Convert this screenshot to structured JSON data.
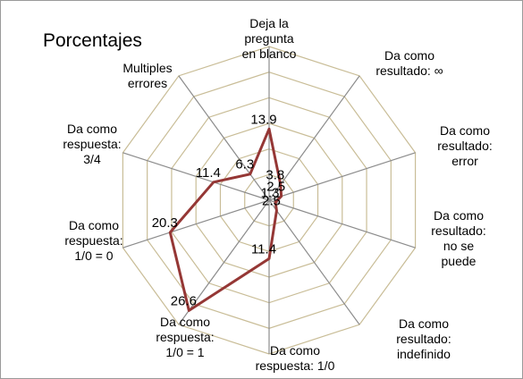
{
  "chart_data": {
    "type": "radar",
    "title": "Porcentajes",
    "categories": [
      "Deja la\npregunta\nen blanco",
      "Da como\nresultado: ∞",
      "Da como\nresultado:\nerror",
      "Da como\nresultado:\nno se\npuede",
      "Da como resultado:\nindefinido",
      "Da como\nrespuesta: 1/0",
      "Da como\nrespuesta:\n1/0 = 1",
      "Da como\nrespuesta:\n1/0 = 0",
      "Da como\nrespuesta:\n3/4",
      "Multiples\nerrores"
    ],
    "values": [
      13.9,
      3.8,
      2.5,
      1.3,
      2.5,
      11.4,
      26.6,
      20.3,
      11.4,
      6.3
    ],
    "color": "#953735",
    "rlim": [
      0,
      30
    ],
    "rticks": [
      0,
      5,
      10,
      15,
      20,
      25,
      30
    ],
    "grid": true
  }
}
